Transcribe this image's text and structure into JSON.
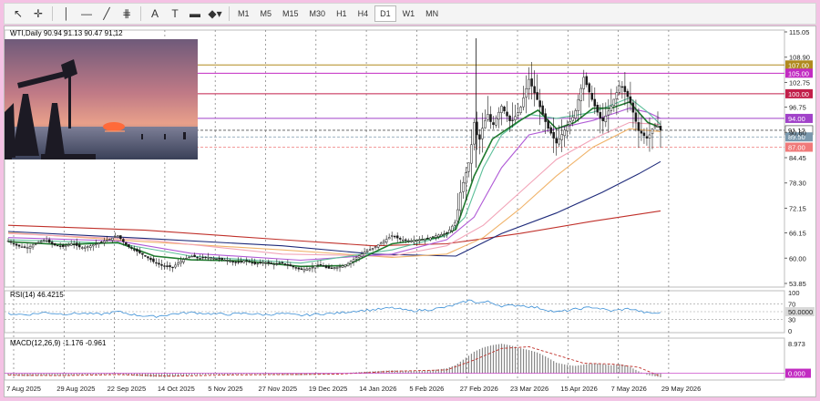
{
  "toolbar": {
    "tools": [
      {
        "name": "cursor-icon",
        "glyph": "↖"
      },
      {
        "name": "crosshair-icon",
        "glyph": "✛"
      },
      {
        "name": "vertical-line-icon",
        "glyph": "│"
      },
      {
        "name": "horizontal-line-icon",
        "glyph": "—"
      },
      {
        "name": "trendline-icon",
        "glyph": "╱"
      },
      {
        "name": "fibonacci-icon",
        "glyph": "⋕"
      },
      {
        "name": "text-tool-icon",
        "glyph": "A"
      },
      {
        "name": "text-label-icon",
        "glyph": "T"
      },
      {
        "name": "rectangle-icon",
        "glyph": "▬"
      },
      {
        "name": "shapes-icon",
        "glyph": "◆▾"
      }
    ],
    "timeframes": [
      "M1",
      "M5",
      "M15",
      "M30",
      "H1",
      "H4",
      "D1",
      "W1",
      "MN"
    ],
    "active_timeframe": "D1"
  },
  "chart": {
    "header": "WTI,Daily  90.94 91.13 90.47 91.12",
    "rsi_label": "RSI(14) 46.4215",
    "macd_label": "MACD(12,26,9) -1.176 -0.961"
  },
  "chart_data": {
    "type": "line",
    "main": {
      "y_ticks": [
        "115.05",
        "108.90",
        "102.75",
        "96.75",
        "90.60",
        "84.45",
        "78.30",
        "72.15",
        "66.15",
        "60.00",
        "53.85"
      ],
      "ylim": [
        53.85,
        115.05
      ],
      "levels": [
        {
          "value": 107.0,
          "label": "107.00",
          "color": "#b08a1e"
        },
        {
          "value": 105.0,
          "label": "105.00",
          "color": "#c22bc2"
        },
        {
          "value": 100.0,
          "label": "100.00",
          "color": "#c21f4a"
        },
        {
          "value": 94.0,
          "label": "94.00",
          "color": "#a142c9"
        },
        {
          "value": 91.12,
          "label": "91.12",
          "color": "#555555"
        },
        {
          "value": 89.5,
          "label": "89.50",
          "color": "#7a98ad"
        },
        {
          "value": 87.0,
          "label": "87.00",
          "color": "#f07a7a"
        }
      ],
      "close": [
        [
          0,
          64.2
        ],
        [
          10,
          63.0
        ],
        [
          20,
          62.5
        ],
        [
          30,
          63.5
        ],
        [
          40,
          64.5
        ],
        [
          50,
          63.2
        ],
        [
          60,
          62.8
        ],
        [
          70,
          63.6
        ],
        [
          80,
          62.5
        ],
        [
          90,
          63.0
        ],
        [
          100,
          63.8
        ],
        [
          110,
          64.5
        ],
        [
          120,
          65.5
        ],
        [
          130,
          63.0
        ],
        [
          140,
          61.8
        ],
        [
          150,
          60.5
        ],
        [
          160,
          59.0
        ],
        [
          170,
          58.0
        ],
        [
          180,
          57.8
        ],
        [
          190,
          59.5
        ],
        [
          200,
          60.5
        ],
        [
          210,
          60.0
        ],
        [
          220,
          60.2
        ],
        [
          230,
          59.8
        ],
        [
          240,
          59.5
        ],
        [
          250,
          58.8
        ],
        [
          260,
          59.5
        ],
        [
          270,
          58.6
        ],
        [
          280,
          59.0
        ],
        [
          290,
          58.5
        ],
        [
          300,
          58.8
        ],
        [
          310,
          58.0
        ],
        [
          320,
          57.2
        ],
        [
          330,
          57.5
        ],
        [
          340,
          58.5
        ],
        [
          350,
          57.5
        ],
        [
          360,
          57.8
        ],
        [
          370,
          58.4
        ],
        [
          380,
          60.0
        ],
        [
          390,
          61.5
        ],
        [
          400,
          62.5
        ],
        [
          410,
          64.0
        ],
        [
          420,
          65.5
        ],
        [
          430,
          64.5
        ],
        [
          440,
          64.2
        ],
        [
          450,
          64.5
        ],
        [
          460,
          64.8
        ],
        [
          470,
          65.6
        ],
        [
          480,
          66.0
        ],
        [
          490,
          69.0
        ],
        [
          495,
          76.0
        ],
        [
          500,
          80.0
        ],
        [
          505,
          84.0
        ],
        [
          510,
          93.0
        ],
        [
          515,
          88.0
        ],
        [
          520,
          92.5
        ],
        [
          525,
          95.0
        ],
        [
          530,
          92.0
        ],
        [
          540,
          97.0
        ],
        [
          550,
          93.0
        ],
        [
          560,
          96.0
        ],
        [
          570,
          103.5
        ],
        [
          580,
          98.0
        ],
        [
          590,
          92.0
        ],
        [
          600,
          88.0
        ],
        [
          610,
          91.5
        ],
        [
          620,
          95.0
        ],
        [
          630,
          104.0
        ],
        [
          640,
          98.0
        ],
        [
          650,
          93.0
        ],
        [
          660,
          97.0
        ],
        [
          670,
          102.5
        ],
        [
          680,
          98.5
        ],
        [
          690,
          91.0
        ],
        [
          700,
          89.0
        ],
        [
          705,
          91.5
        ],
        [
          710,
          92.5
        ],
        [
          714,
          91.1
        ]
      ],
      "ma_fast_green": [
        [
          0,
          64.0
        ],
        [
          60,
          63.3
        ],
        [
          120,
          63.8
        ],
        [
          160,
          60.5
        ],
        [
          200,
          59.6
        ],
        [
          260,
          59.3
        ],
        [
          320,
          58.0
        ],
        [
          370,
          58.2
        ],
        [
          420,
          63.5
        ],
        [
          470,
          65.0
        ],
        [
          490,
          67.0
        ],
        [
          510,
          80.0
        ],
        [
          530,
          89.0
        ],
        [
          560,
          93.5
        ],
        [
          580,
          96.0
        ],
        [
          600,
          91.5
        ],
        [
          620,
          93.0
        ],
        [
          640,
          96.5
        ],
        [
          660,
          96.5
        ],
        [
          680,
          98.0
        ],
        [
          700,
          93.0
        ],
        [
          714,
          91.8
        ]
      ],
      "ma_teal": [
        [
          0,
          64.5
        ],
        [
          120,
          63.6
        ],
        [
          200,
          60.5
        ],
        [
          320,
          58.8
        ],
        [
          420,
          62.0
        ],
        [
          480,
          65.5
        ],
        [
          500,
          70.0
        ],
        [
          520,
          82.0
        ],
        [
          540,
          90.0
        ],
        [
          570,
          95.0
        ],
        [
          600,
          94.0
        ],
        [
          640,
          95.5
        ],
        [
          680,
          99.0
        ],
        [
          700,
          95.5
        ],
        [
          714,
          92.5
        ]
      ],
      "ma_violet": [
        [
          0,
          65.0
        ],
        [
          120,
          64.2
        ],
        [
          200,
          61.2
        ],
        [
          320,
          59.5
        ],
        [
          420,
          61.0
        ],
        [
          480,
          64.5
        ],
        [
          510,
          70.0
        ],
        [
          540,
          82.0
        ],
        [
          570,
          90.0
        ],
        [
          600,
          91.5
        ],
        [
          640,
          93.5
        ],
        [
          680,
          96.5
        ],
        [
          700,
          95.5
        ],
        [
          714,
          94.0
        ]
      ],
      "ma_pink": [
        [
          0,
          66.0
        ],
        [
          150,
          64.5
        ],
        [
          300,
          61.0
        ],
        [
          420,
          60.5
        ],
        [
          480,
          63.0
        ],
        [
          520,
          68.0
        ],
        [
          560,
          76.0
        ],
        [
          600,
          84.0
        ],
        [
          640,
          89.0
        ],
        [
          680,
          93.0
        ],
        [
          714,
          92.5
        ]
      ],
      "ma_orange": [
        [
          0,
          66.2
        ],
        [
          150,
          64.0
        ],
        [
          300,
          62.0
        ],
        [
          420,
          60.2
        ],
        [
          480,
          61.0
        ],
        [
          520,
          65.0
        ],
        [
          560,
          72.0
        ],
        [
          600,
          80.0
        ],
        [
          640,
          87.0
        ],
        [
          680,
          91.5
        ],
        [
          714,
          90.8
        ]
      ],
      "ma_navy": [
        [
          0,
          66.5
        ],
        [
          150,
          64.8
        ],
        [
          300,
          63.0
        ],
        [
          400,
          61.0
        ],
        [
          490,
          60.5
        ],
        [
          540,
          66.0
        ],
        [
          600,
          71.0
        ],
        [
          650,
          76.0
        ],
        [
          690,
          80.5
        ],
        [
          714,
          83.5
        ]
      ],
      "ma_red": [
        [
          0,
          68.0
        ],
        [
          150,
          66.8
        ],
        [
          300,
          64.5
        ],
        [
          400,
          63.0
        ],
        [
          480,
          63.5
        ],
        [
          560,
          66.0
        ],
        [
          640,
          69.0
        ],
        [
          714,
          71.5
        ]
      ]
    },
    "rsi": {
      "y_ticks": [
        "100",
        "70",
        "50.0000",
        "30",
        "0"
      ],
      "ylim": [
        0,
        100
      ],
      "values": [
        [
          0,
          45
        ],
        [
          20,
          42
        ],
        [
          40,
          48
        ],
        [
          60,
          44
        ],
        [
          80,
          46
        ],
        [
          100,
          43
        ],
        [
          120,
          50
        ],
        [
          140,
          41
        ],
        [
          160,
          37
        ],
        [
          180,
          44
        ],
        [
          200,
          48
        ],
        [
          220,
          45
        ],
        [
          240,
          43
        ],
        [
          260,
          46
        ],
        [
          280,
          42
        ],
        [
          300,
          45
        ],
        [
          320,
          40
        ],
        [
          340,
          44
        ],
        [
          360,
          46
        ],
        [
          380,
          52
        ],
        [
          400,
          55
        ],
        [
          420,
          60
        ],
        [
          440,
          52
        ],
        [
          460,
          55
        ],
        [
          480,
          62
        ],
        [
          495,
          72
        ],
        [
          505,
          80
        ],
        [
          515,
          73
        ],
        [
          525,
          76
        ],
        [
          540,
          65
        ],
        [
          560,
          67
        ],
        [
          580,
          60
        ],
        [
          600,
          49
        ],
        [
          620,
          56
        ],
        [
          640,
          62
        ],
        [
          660,
          52
        ],
        [
          680,
          58
        ],
        [
          700,
          46
        ],
        [
          714,
          46.4
        ]
      ]
    },
    "macd": {
      "y_ticks": [
        "8.973",
        "0.000"
      ],
      "ylim": [
        -1.5,
        9.5
      ],
      "histogram": [
        [
          0,
          -0.6
        ],
        [
          20,
          -0.9
        ],
        [
          40,
          -0.7
        ],
        [
          60,
          -0.8
        ],
        [
          80,
          -0.5
        ],
        [
          100,
          -0.4
        ],
        [
          120,
          -0.3
        ],
        [
          140,
          -0.8
        ],
        [
          160,
          -1.1
        ],
        [
          180,
          -1.0
        ],
        [
          200,
          -0.6
        ],
        [
          220,
          -0.4
        ],
        [
          240,
          -0.5
        ],
        [
          260,
          -0.3
        ],
        [
          280,
          -0.4
        ],
        [
          300,
          -0.5
        ],
        [
          320,
          -0.6
        ],
        [
          340,
          -0.4
        ],
        [
          360,
          -0.2
        ],
        [
          380,
          0.3
        ],
        [
          400,
          0.6
        ],
        [
          420,
          0.9
        ],
        [
          440,
          0.7
        ],
        [
          460,
          0.8
        ],
        [
          480,
          1.5
        ],
        [
          490,
          2.5
        ],
        [
          500,
          4.5
        ],
        [
          510,
          6.5
        ],
        [
          520,
          7.8
        ],
        [
          530,
          8.5
        ],
        [
          540,
          8.9
        ],
        [
          550,
          8.4
        ],
        [
          560,
          7.6
        ],
        [
          570,
          7.0
        ],
        [
          580,
          6.2
        ],
        [
          590,
          4.8
        ],
        [
          600,
          3.2
        ],
        [
          610,
          2.6
        ],
        [
          620,
          2.2
        ],
        [
          630,
          2.6
        ],
        [
          640,
          3.0
        ],
        [
          650,
          2.8
        ],
        [
          660,
          2.4
        ],
        [
          670,
          2.8
        ],
        [
          680,
          2.0
        ],
        [
          690,
          0.6
        ],
        [
          700,
          -0.6
        ],
        [
          714,
          -1.2
        ]
      ],
      "signal": [
        [
          0,
          -0.6
        ],
        [
          60,
          -0.7
        ],
        [
          120,
          -0.4
        ],
        [
          180,
          -0.9
        ],
        [
          240,
          -0.5
        ],
        [
          300,
          -0.4
        ],
        [
          360,
          -0.3
        ],
        [
          420,
          0.6
        ],
        [
          480,
          1.0
        ],
        [
          510,
          4.0
        ],
        [
          540,
          7.5
        ],
        [
          570,
          8.0
        ],
        [
          600,
          5.5
        ],
        [
          630,
          3.0
        ],
        [
          660,
          2.8
        ],
        [
          690,
          1.8
        ],
        [
          714,
          -0.96
        ]
      ]
    },
    "x_ticks": [
      "7 Aug 2025",
      "29 Aug 2025",
      "22 Sep 2025",
      "14 Oct 2025",
      "5 Nov 2025",
      "27 Nov 2025",
      "19 Dec 2025",
      "14 Jan 2026",
      "5 Feb 2026",
      "27 Feb 2026",
      "23 Mar 2026",
      "15 Apr 2026",
      "7 May 2026",
      "29 May 2026"
    ]
  },
  "colors": {
    "candle": "#1a1a1a",
    "ma_fast_green": "#1f7a2e",
    "ma_teal": "#5dbf9a",
    "ma_violet": "#b05ad6",
    "ma_pink": "#f2a4b8",
    "ma_orange": "#f0b36a",
    "ma_navy": "#1e2a7a",
    "ma_red": "#c0302a",
    "rsi_line": "#3b8fd6",
    "macd_hist": "#888888",
    "macd_signal": "#c0302a"
  }
}
